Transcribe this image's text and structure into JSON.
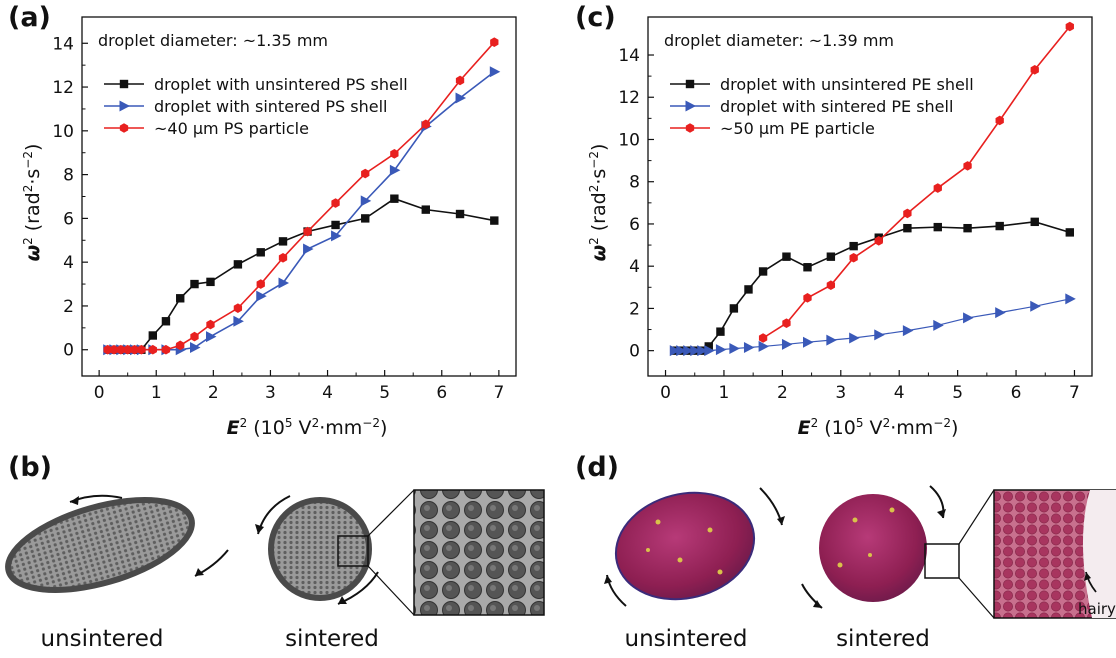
{
  "panels": {
    "a": "(a)",
    "b": "(b)",
    "c": "(c)",
    "d": "(d)"
  },
  "captions": {
    "b_left": "unsintered",
    "b_right": "sintered",
    "d_left": "unsintered",
    "d_right": "sintered",
    "d_hairy": "hairy"
  },
  "colors": {
    "black_series": "#111111",
    "blue_series": "#3a59b8",
    "red_series": "#e8201f",
    "ps_droplet": "#8a8a8a",
    "pe_droplet": "#a02a5e"
  },
  "chart_data": [
    {
      "type": "line",
      "panel": "(a)",
      "annotation": "droplet diameter: ~1.35 mm",
      "xlabel": {
        "bold": "E",
        "sup1": "2",
        "rest_a": " (10",
        "sup2": "5",
        "rest_b": " V",
        "sup3": "2",
        "rest_c": "·mm",
        "sup4": "−2",
        "rest_d": ")"
      },
      "ylabel": {
        "main": "ω",
        "sup1": "2",
        "rest_a": " (rad",
        "sup2": "2",
        "rest_b": "·s",
        "sup3": "−2",
        "rest_c": ")"
      },
      "xlim": [
        -0.3,
        7.3
      ],
      "ylim": [
        -1.2,
        15.2
      ],
      "xticks": [
        "0",
        "1",
        "2",
        "3",
        "4",
        "5",
        "6",
        "7"
      ],
      "yticks": [
        "0",
        "2",
        "4",
        "6",
        "8",
        "10",
        "12",
        "14"
      ],
      "legend_position": "upper-left",
      "series": [
        {
          "name": "droplet with unsintered PS shell",
          "marker": "square",
          "x": [
            0.15,
            0.26,
            0.38,
            0.5,
            0.62,
            0.74,
            0.94,
            1.17,
            1.42,
            1.67,
            1.95,
            2.43,
            2.83,
            3.22,
            3.65,
            4.14,
            4.66,
            5.17,
            5.72,
            6.32,
            6.92
          ],
          "y": [
            0,
            0,
            0,
            0,
            0,
            0,
            0.65,
            1.3,
            2.35,
            3.0,
            3.1,
            3.9,
            4.45,
            4.95,
            5.4,
            5.7,
            6.0,
            6.9,
            6.4,
            6.2,
            5.9
          ]
        },
        {
          "name": "droplet with sintered PS shell",
          "marker": "triangle-right",
          "x": [
            0.15,
            0.26,
            0.38,
            0.5,
            0.62,
            0.74,
            0.94,
            1.17,
            1.42,
            1.67,
            1.95,
            2.43,
            2.83,
            3.22,
            3.65,
            4.14,
            4.66,
            5.17,
            5.72,
            6.32,
            6.92
          ],
          "y": [
            0,
            0,
            0,
            0,
            0,
            0,
            0,
            0,
            0,
            0.1,
            0.6,
            1.3,
            2.45,
            3.05,
            4.6,
            5.2,
            6.8,
            8.2,
            10.2,
            11.5,
            12.7
          ]
        },
        {
          "name": "~40 μm PS particle",
          "marker": "hexagon",
          "x": [
            0.15,
            0.26,
            0.38,
            0.5,
            0.62,
            0.74,
            0.94,
            1.17,
            1.42,
            1.67,
            1.95,
            2.43,
            2.83,
            3.22,
            3.65,
            4.14,
            4.66,
            5.17,
            5.72,
            6.32,
            6.92
          ],
          "y": [
            0,
            0,
            0,
            0,
            0,
            0,
            0,
            0,
            0.2,
            0.6,
            1.15,
            1.9,
            3.0,
            4.2,
            5.4,
            6.7,
            8.05,
            8.95,
            10.3,
            12.3,
            14.05
          ]
        }
      ]
    },
    {
      "type": "line",
      "panel": "(c)",
      "annotation": "droplet diameter: ~1.39 mm",
      "xlabel": {
        "bold": "E",
        "sup1": "2",
        "rest_a": " (10",
        "sup2": "5",
        "rest_b": " V",
        "sup3": "2",
        "rest_c": "·mm",
        "sup4": "−2",
        "rest_d": ")"
      },
      "ylabel": {
        "main": "ω",
        "sup1": "2",
        "rest_a": " (rad",
        "sup2": "2",
        "rest_b": "·s",
        "sup3": "−2",
        "rest_c": ")"
      },
      "xlim": [
        -0.3,
        7.3
      ],
      "ylim": [
        -1.2,
        15.8
      ],
      "xticks": [
        "0",
        "1",
        "2",
        "3",
        "4",
        "5",
        "6",
        "7"
      ],
      "yticks": [
        "0",
        "2",
        "4",
        "6",
        "8",
        "10",
        "12",
        "14"
      ],
      "legend_position": "upper-left",
      "series": [
        {
          "name": "droplet with unsintered PE shell",
          "marker": "square",
          "x": [
            0.15,
            0.26,
            0.38,
            0.5,
            0.62,
            0.74,
            0.94,
            1.17,
            1.42,
            1.67,
            2.07,
            2.43,
            2.83,
            3.22,
            3.65,
            4.14,
            4.66,
            5.17,
            5.72,
            6.32,
            6.92
          ],
          "y": [
            0,
            0,
            0,
            0,
            0,
            0.2,
            0.9,
            2.0,
            2.9,
            3.75,
            4.45,
            3.95,
            4.45,
            4.95,
            5.35,
            5.8,
            5.85,
            5.8,
            5.9,
            6.1,
            5.6
          ]
        },
        {
          "name": "droplet with sintered PE shell",
          "marker": "triangle-right",
          "x": [
            0.15,
            0.26,
            0.38,
            0.5,
            0.62,
            0.74,
            0.94,
            1.17,
            1.42,
            1.67,
            2.07,
            2.43,
            2.83,
            3.22,
            3.65,
            4.14,
            4.66,
            5.17,
            5.72,
            6.32,
            6.92
          ],
          "y": [
            0,
            0,
            0,
            0,
            0,
            0,
            0.05,
            0.1,
            0.15,
            0.2,
            0.3,
            0.4,
            0.5,
            0.6,
            0.75,
            0.95,
            1.2,
            1.55,
            1.8,
            2.1,
            2.45
          ]
        },
        {
          "name": "~50 μm PE particle",
          "marker": "hexagon",
          "x": [
            1.67,
            2.07,
            2.43,
            2.83,
            3.22,
            3.65,
            4.14,
            4.66,
            5.17,
            5.72,
            6.32,
            6.92
          ],
          "y": [
            0.6,
            1.3,
            2.5,
            3.1,
            4.4,
            5.2,
            6.5,
            7.7,
            8.75,
            10.9,
            13.3,
            15.35
          ]
        }
      ]
    }
  ]
}
